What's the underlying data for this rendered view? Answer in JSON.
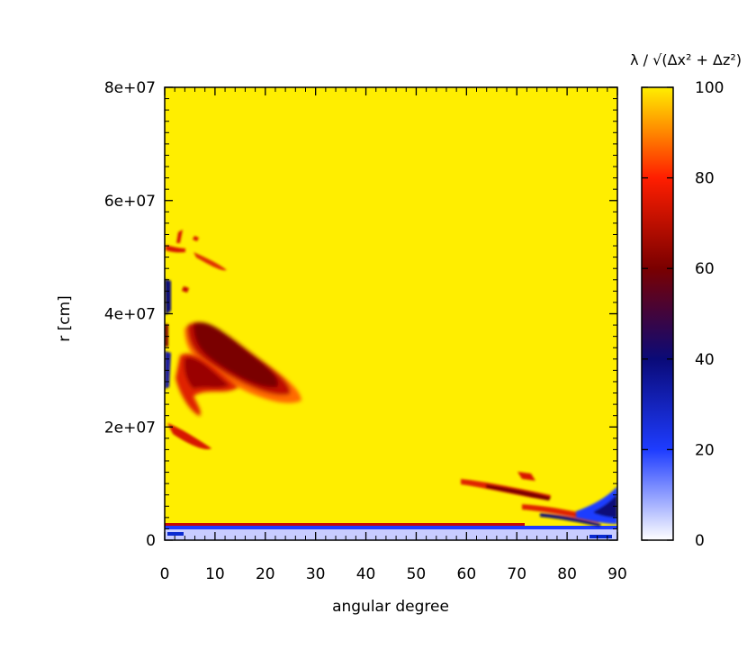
{
  "chart_data": {
    "type": "heatmap",
    "title": "",
    "xlabel": "angular degree",
    "ylabel": "r [cm]",
    "xlim": [
      0,
      90
    ],
    "ylim": [
      0,
      80000000
    ],
    "x_ticks": [
      {
        "value": 0,
        "label": "0"
      },
      {
        "value": 10,
        "label": "10"
      },
      {
        "value": 20,
        "label": "20"
      },
      {
        "value": 30,
        "label": "30"
      },
      {
        "value": 40,
        "label": "40"
      },
      {
        "value": 50,
        "label": "50"
      },
      {
        "value": 60,
        "label": "60"
      },
      {
        "value": 70,
        "label": "70"
      },
      {
        "value": 80,
        "label": "80"
      },
      {
        "value": 90,
        "label": "90"
      }
    ],
    "y_ticks": [
      {
        "value": 0,
        "label": "0"
      },
      {
        "value": 20000000,
        "label": "2e+07"
      },
      {
        "value": 40000000,
        "label": "4e+07"
      },
      {
        "value": 60000000,
        "label": "6e+07"
      },
      {
        "value": 80000000,
        "label": "8e+07"
      }
    ],
    "colorbar": {
      "label": "λ / √(Δx² + Δz²)",
      "range": [
        0,
        100
      ],
      "ticks": [
        {
          "value": 0,
          "label": "0"
        },
        {
          "value": 20,
          "label": "20"
        },
        {
          "value": 40,
          "label": "40"
        },
        {
          "value": 60,
          "label": "60"
        },
        {
          "value": 80,
          "label": "80"
        },
        {
          "value": 100,
          "label": "100"
        }
      ],
      "colormap": [
        {
          "value": 0,
          "color": "#ffffff"
        },
        {
          "value": 20,
          "color": "#1e3cff"
        },
        {
          "value": 40,
          "color": "#0a0a78"
        },
        {
          "value": 60,
          "color": "#7a0000"
        },
        {
          "value": 80,
          "color": "#ff1e00"
        },
        {
          "value": 100,
          "color": "#ffee00"
        }
      ]
    },
    "background_value": 100,
    "features": [
      {
        "name": "main-streak",
        "x": [
          4,
          27
        ],
        "y": [
          22000000,
          39000000
        ],
        "value": 58
      },
      {
        "name": "secondary-streak",
        "x": [
          3,
          14
        ],
        "y": [
          23000000,
          33000000
        ],
        "value": 75
      },
      {
        "name": "lower-left-streak",
        "x": [
          0,
          9
        ],
        "y": [
          16000000,
          21000000
        ],
        "value": 78
      },
      {
        "name": "upper-left-streaks",
        "x": [
          0,
          13
        ],
        "y": [
          43000000,
          55000000
        ],
        "value": 82
      },
      {
        "name": "left-edge-band",
        "x": [
          0,
          1
        ],
        "y": [
          25000000,
          46000000
        ],
        "value": 35
      },
      {
        "name": "bottom-right-streaks",
        "x": [
          59,
          90
        ],
        "y": [
          4000000,
          14000000
        ],
        "value": 70
      },
      {
        "name": "bottom-right-corner",
        "x": [
          80,
          90
        ],
        "y": [
          3000000,
          10000000
        ],
        "value": 30
      },
      {
        "name": "bottom-boundary-layer",
        "x": [
          0,
          90
        ],
        "y": [
          0,
          3000000
        ],
        "value": 10
      }
    ]
  }
}
